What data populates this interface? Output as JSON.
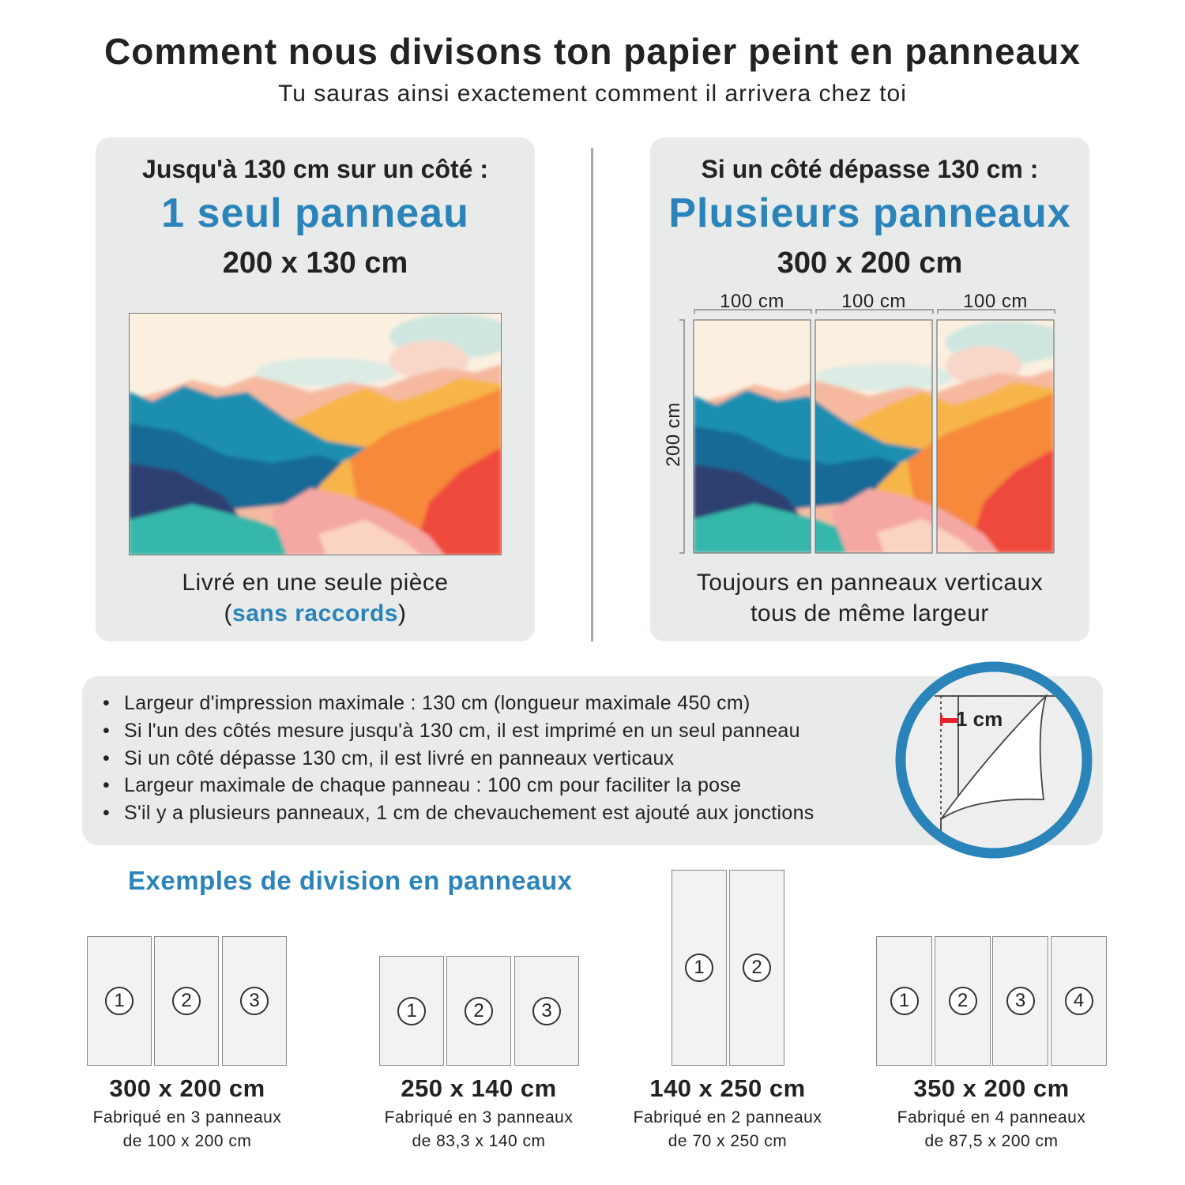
{
  "header": {
    "title": "Comment nous divisons ton papier peint en panneaux",
    "subtitle": "Tu sauras ainsi exactement comment il arrivera chez toi"
  },
  "single": {
    "heading": "Jusqu'à 130 cm sur un côté :",
    "highlight": "1 seul panneau",
    "size": "200 x 130 cm",
    "caption_line1": "Livré en une seule pièce",
    "caption_open": "(",
    "caption_highlight": "sans raccords",
    "caption_close": ")"
  },
  "multiple": {
    "heading": "Si un côté dépasse 130 cm :",
    "highlight": "Plusieurs panneaux",
    "size": "300 x 200 cm",
    "panel_widths": [
      "100 cm",
      "100 cm",
      "100 cm"
    ],
    "height_label": "200 cm",
    "caption_line1": "Toujours en panneaux verticaux",
    "caption_line2": "tous de même largeur"
  },
  "info": {
    "bullets": [
      "Largeur d'impression maximale : 130 cm (longueur maximale 450 cm)",
      "Si l'un des côtés mesure jusqu'à 130 cm, il est imprimé en un seul panneau",
      "Si un côté dépasse 130 cm, il est livré en panneaux verticaux",
      "Largeur maximale de chaque panneau : 100 cm pour faciliter la pose",
      "S'il y a plusieurs panneaux, 1 cm de chevauchement est ajouté aux jonctions"
    ],
    "overlap_label": "1 cm"
  },
  "examples": {
    "title": "Exemples de division en panneaux",
    "items": [
      {
        "size": "300 x 200 cm",
        "line1": "Fabriqué en 3 panneaux",
        "line2": "de 100 x 200 cm",
        "panels": [
          "1",
          "2",
          "3"
        ]
      },
      {
        "size": "250 x 140 cm",
        "line1": "Fabriqué en 3 panneaux",
        "line2": "de 83,3 x 140 cm",
        "panels": [
          "1",
          "2",
          "3"
        ]
      },
      {
        "size": "140 x 250 cm",
        "line1": "Fabriqué en 2 panneaux",
        "line2": "de 70 x 250 cm",
        "panels": [
          "1",
          "2"
        ]
      },
      {
        "size": "350 x 200 cm",
        "line1": "Fabriqué en 4 panneaux",
        "line2": "de 87,5 x 200 cm",
        "panels": [
          "1",
          "2",
          "3",
          "4"
        ]
      }
    ]
  },
  "colors": {
    "accent": "#2a83b9",
    "card": "#e9ebea",
    "overlap_marker": "#e8202a"
  }
}
